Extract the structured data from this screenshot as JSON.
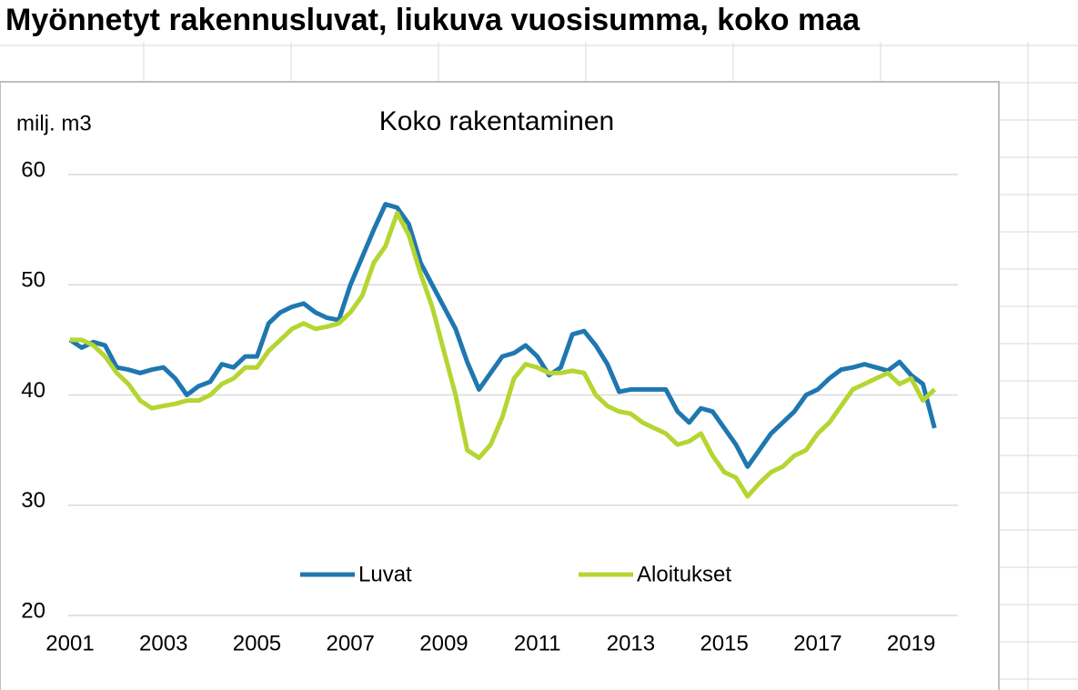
{
  "heading": "Myönnetyt rakennusluvat, liukuva vuosisumma, koko maa",
  "chart_data": {
    "type": "line",
    "title": "Koko rakentaminen",
    "y_label": "milj. m3",
    "x": [
      2001,
      2001.25,
      2001.5,
      2001.75,
      2002,
      2002.25,
      2002.5,
      2002.75,
      2003,
      2003.25,
      2003.5,
      2003.75,
      2004,
      2004.25,
      2004.5,
      2004.75,
      2005,
      2005.25,
      2005.5,
      2005.75,
      2006,
      2006.25,
      2006.5,
      2006.75,
      2007,
      2007.25,
      2007.5,
      2007.75,
      2008,
      2008.25,
      2008.5,
      2008.75,
      2009,
      2009.25,
      2009.5,
      2009.75,
      2010,
      2010.25,
      2010.5,
      2010.75,
      2011,
      2011.25,
      2011.5,
      2011.75,
      2012,
      2012.25,
      2012.5,
      2012.75,
      2013,
      2013.25,
      2013.5,
      2013.75,
      2014,
      2014.25,
      2014.5,
      2014.75,
      2015,
      2015.25,
      2015.5,
      2015.75,
      2016,
      2016.25,
      2016.5,
      2016.75,
      2017,
      2017.25,
      2017.5,
      2017.75,
      2018,
      2018.25,
      2018.5,
      2018.75,
      2019,
      2019.25,
      2019.5
    ],
    "series": [
      {
        "name": "Luvat",
        "color": "#1f77b0",
        "values": [
          45,
          44.3,
          44.8,
          44.5,
          42.5,
          42.3,
          42,
          42.3,
          42.5,
          41.5,
          40,
          40.8,
          41.2,
          42.8,
          42.5,
          43.5,
          43.5,
          46.5,
          47.5,
          48,
          48.3,
          47.5,
          47,
          46.8,
          50,
          52.5,
          55,
          57.3,
          57,
          55.5,
          52,
          50,
          48,
          46,
          43,
          40.5,
          42,
          43.5,
          43.8,
          44.5,
          43.5,
          41.8,
          42.5,
          45.5,
          45.8,
          44.5,
          42.8,
          40.3,
          40.5,
          40.5,
          40.5,
          40.5,
          38.5,
          37.5,
          38.8,
          38.5,
          37,
          35.5,
          33.5,
          35,
          36.5,
          37.5,
          38.5,
          40,
          40.5,
          41.5,
          42.3,
          42.5,
          42.8,
          42.5,
          42.2,
          43,
          41.8,
          41,
          37
        ]
      },
      {
        "name": "Aloitukset",
        "color": "#b5d531",
        "values": [
          45,
          45,
          44.5,
          43.5,
          42,
          41,
          39.5,
          38.8,
          39,
          39.2,
          39.5,
          39.5,
          40,
          41,
          41.5,
          42.5,
          42.5,
          44,
          45,
          46,
          46.5,
          46,
          46.2,
          46.5,
          47.5,
          49,
          52,
          53.5,
          56.5,
          54.5,
          51,
          48,
          44,
          40,
          35,
          34.3,
          35.5,
          38,
          41.5,
          42.8,
          42.5,
          42,
          42,
          42.2,
          42,
          40,
          39,
          38.5,
          38.3,
          37.5,
          37,
          36.5,
          35.5,
          35.8,
          36.5,
          34.5,
          33,
          32.5,
          30.8,
          32,
          33,
          33.5,
          34.5,
          35,
          36.5,
          37.5,
          39,
          40.5,
          41,
          41.5,
          42,
          41,
          41.5,
          39.5,
          40.5
        ]
      }
    ],
    "xlim": [
      2001,
      2020
    ],
    "xticks": [
      2001,
      2003,
      2005,
      2007,
      2009,
      2011,
      2013,
      2015,
      2017,
      2019
    ],
    "ylim": [
      20,
      60
    ],
    "yticks": [
      20,
      30,
      40,
      50,
      60
    ],
    "grid": true
  }
}
